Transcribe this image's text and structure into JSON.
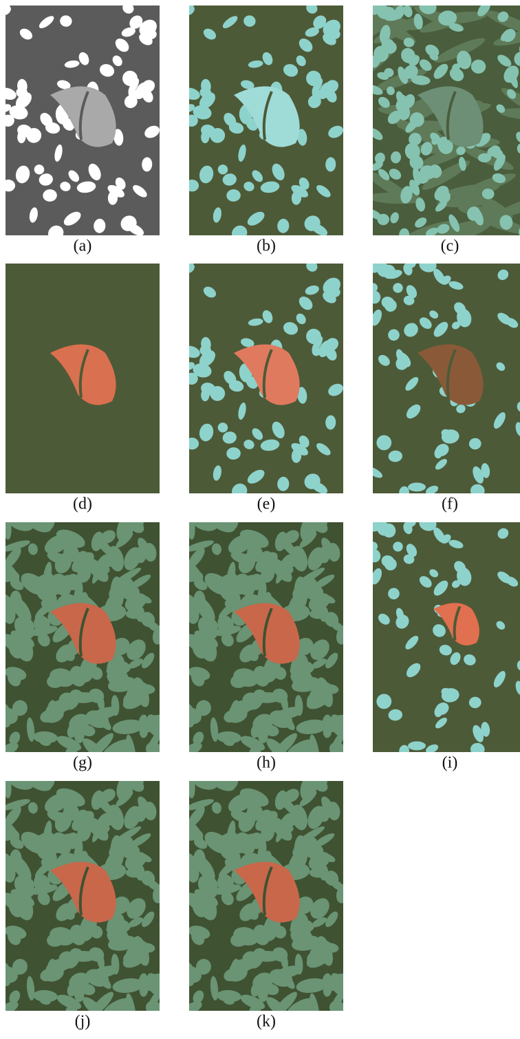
{
  "panels": [
    {
      "label": "(a)"
    },
    {
      "label": "(b)"
    },
    {
      "label": "(c)"
    },
    {
      "label": "(d)"
    },
    {
      "label": "(e)"
    },
    {
      "label": "(f)"
    },
    {
      "label": "(g)"
    },
    {
      "label": "(h)"
    },
    {
      "label": "(i)"
    },
    {
      "label": "(j)"
    },
    {
      "label": "(k)"
    }
  ]
}
